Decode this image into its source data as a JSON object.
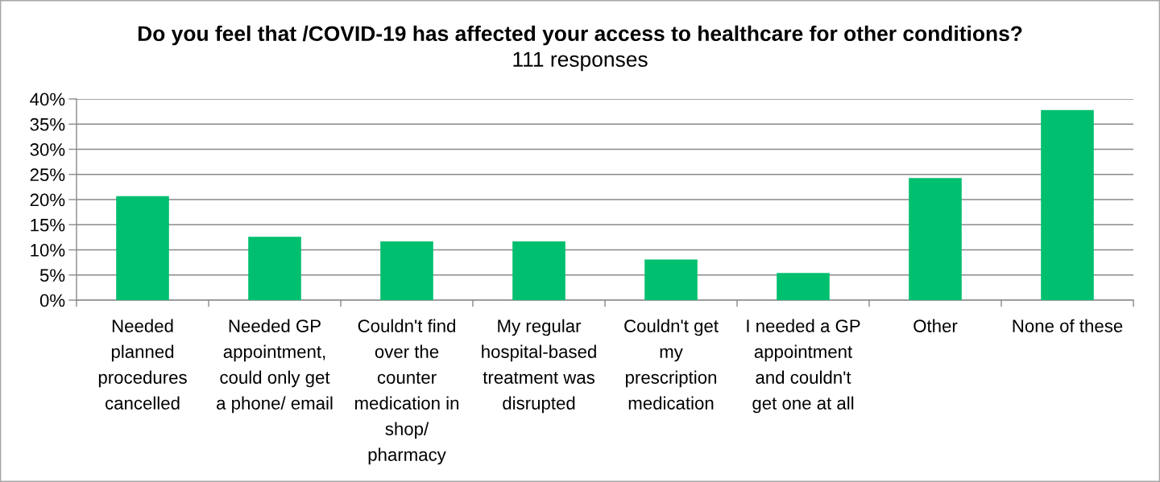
{
  "chart_data": {
    "type": "bar",
    "title": "Do you feel that /COVID-19 has affected your access to healthcare for other conditions?",
    "subtitle": "111 responses",
    "categories": [
      "Needed\nplanned\nprocedures\ncancelled",
      "Needed GP\nappointment,\ncould only get\na phone/ email",
      "Couldn't find\nover the\ncounter\nmedication in\nshop/\npharmacy",
      "My regular\nhospital-based\ntreatment was\ndisrupted",
      "Couldn't get\nmy\nprescription\nmedication",
      "I needed a GP\nappointment\nand couldn't\nget one at all",
      "Other",
      "None of these"
    ],
    "values": [
      20.7,
      12.6,
      11.7,
      11.7,
      8.1,
      5.4,
      24.3,
      37.8
    ],
    "color": "#00bf6f",
    "ylim": [
      0,
      40
    ],
    "yticks": [
      {
        "value": 0,
        "label": "0%"
      },
      {
        "value": 5,
        "label": "5%"
      },
      {
        "value": 10,
        "label": "10%"
      },
      {
        "value": 15,
        "label": "15%"
      },
      {
        "value": 20,
        "label": "20%"
      },
      {
        "value": 25,
        "label": "25%"
      },
      {
        "value": 30,
        "label": "30%"
      },
      {
        "value": 35,
        "label": "35%"
      },
      {
        "value": 40,
        "label": "40%"
      }
    ],
    "grid": "y",
    "legend": false
  }
}
